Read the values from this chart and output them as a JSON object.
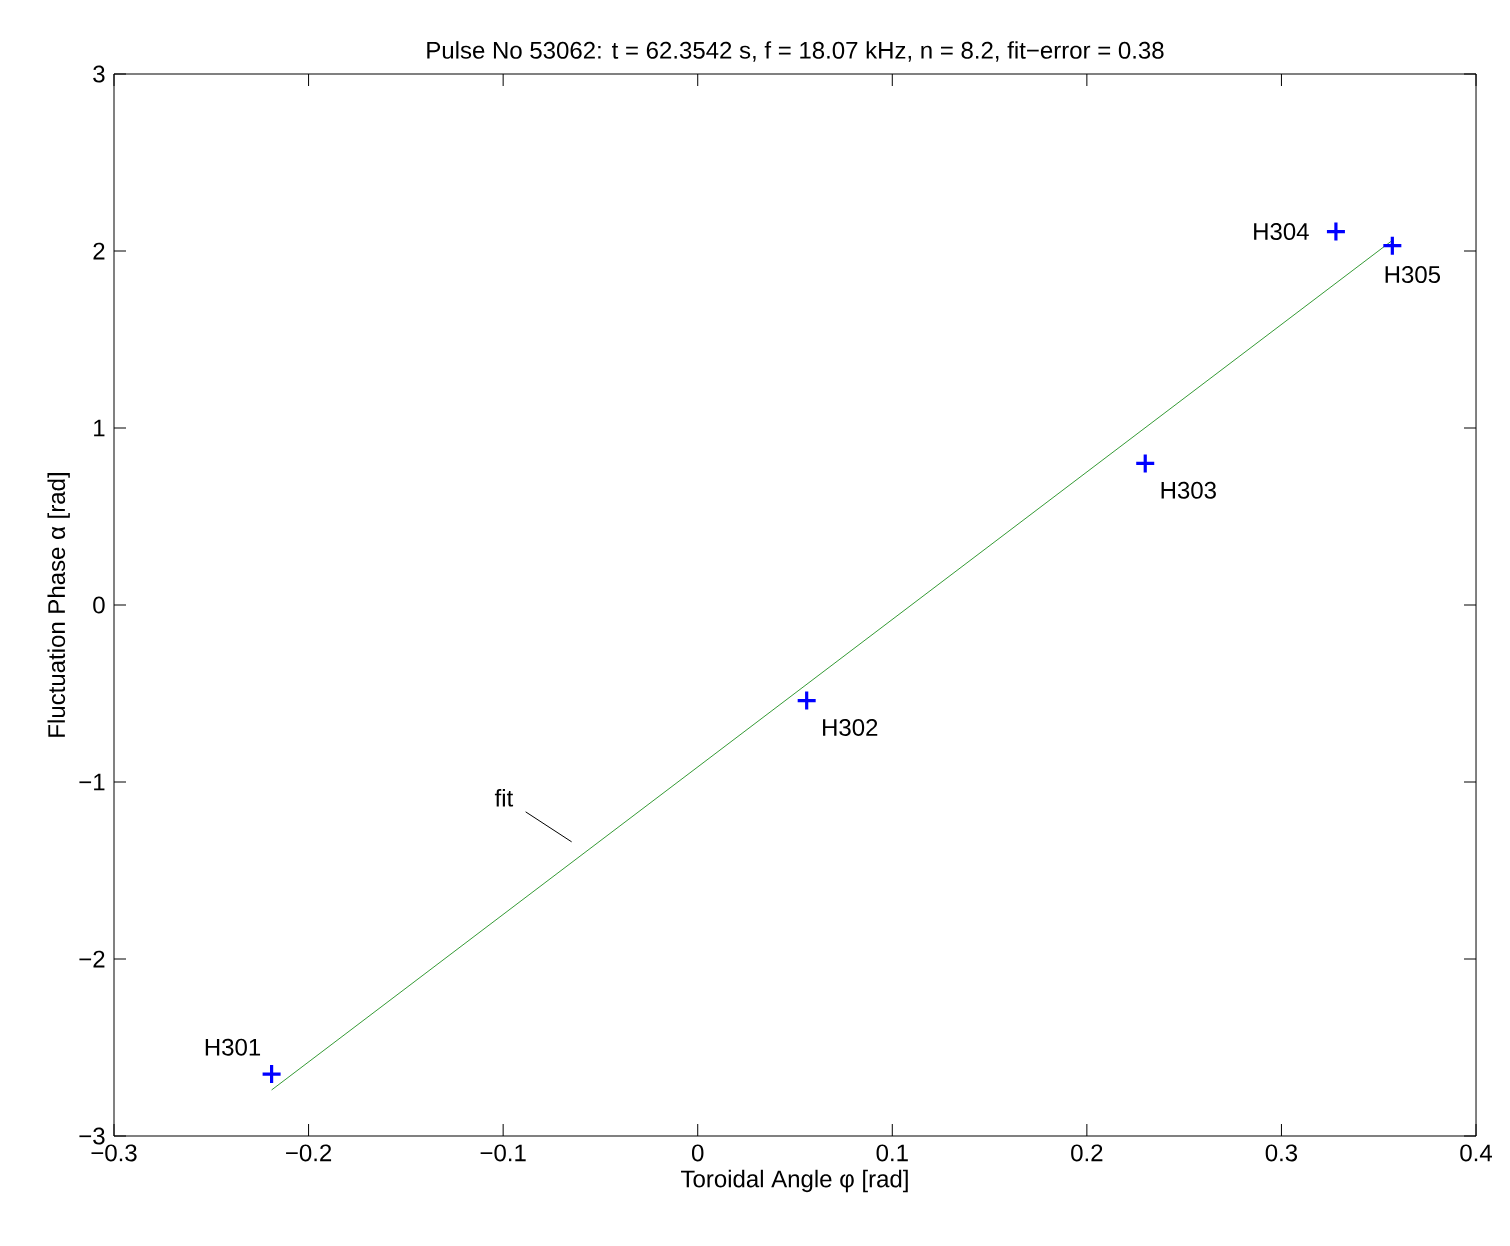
{
  "chart_data": {
    "type": "scatter",
    "title": "Pulse No 53062: t = 62.3542 s, f = 18.07 kHz, n = 8.2, fit−error = 0.38",
    "xlabel": "Toroidal Angle φ [rad]",
    "ylabel": "Fluctuation Phase α [rad]",
    "xlim": [
      -0.3,
      0.4
    ],
    "ylim": [
      -3,
      3
    ],
    "xticks": [
      {
        "value": -0.3,
        "label": "−0.3"
      },
      {
        "value": -0.2,
        "label": "−0.2"
      },
      {
        "value": -0.1,
        "label": "−0.1"
      },
      0,
      0.1,
      0.2,
      0.3,
      0.4
    ],
    "yticks": [
      {
        "value": -3,
        "label": "−3"
      },
      {
        "value": -2,
        "label": "−2"
      },
      {
        "value": -1,
        "label": "−1"
      },
      0,
      1,
      2,
      3
    ],
    "grid": false,
    "series": [
      {
        "color": "#0000ff",
        "marker": "cross",
        "x": [
          -0.219,
          0.056,
          0.23,
          0.328,
          0.357
        ],
        "values": [
          -2.65,
          -0.54,
          0.8,
          2.11,
          2.03
        ]
      },
      {
        "type": "line",
        "color": "#008000",
        "marker": "none",
        "line_style": "solid",
        "x": [
          -0.219,
          0.357
        ],
        "values": [
          -2.74,
          2.06
        ]
      }
    ],
    "annotations": [
      {
        "text": "H301",
        "x": -0.219,
        "y": -2.65
      },
      {
        "text": "H302",
        "x": 0.056,
        "y": -0.54
      },
      {
        "text": "H303",
        "x": 0.23,
        "y": 0.8
      },
      {
        "text": "H304",
        "x": 0.328,
        "y": 2.11
      },
      {
        "text": "H305",
        "x": 0.357,
        "y": 2.03
      },
      "fit"
    ]
  }
}
